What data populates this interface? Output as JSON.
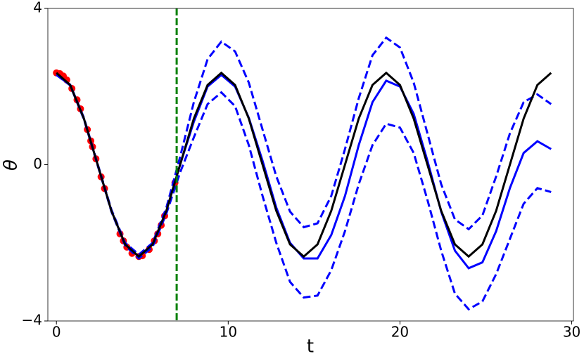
{
  "chart_data": {
    "type": "line",
    "xlabel": "t",
    "ylabel": "θ",
    "xlim": [
      -0.5,
      30.1
    ],
    "ylim": [
      -4,
      4
    ],
    "xticks": [
      0,
      10,
      20,
      30
    ],
    "yticks": [
      {
        "value": -4,
        "label": "−4"
      },
      0,
      4
    ],
    "x": [
      0,
      0.8,
      1.6,
      2.4,
      3.2,
      4.0,
      4.8,
      5.6,
      6.4,
      7.2,
      8.0,
      8.8,
      9.6,
      10.4,
      11.2,
      12.0,
      12.8,
      13.6,
      14.4,
      15.2,
      16.0,
      16.8,
      17.6,
      18.4,
      19.2,
      20.0,
      20.8,
      21.6,
      22.4,
      23.2,
      24.0,
      24.8,
      25.6,
      26.4,
      27.2,
      28.0,
      28.8
    ],
    "series": [
      {
        "color": "#0000ff",
        "dashed": true,
        "values": [
          2.3,
          2.05,
          1.2,
          0.02,
          -1.15,
          -2.0,
          -2.3,
          -2.0,
          -1.1,
          0.2,
          1.6,
          2.7,
          3.15,
          2.9,
          2.1,
          0.9,
          -0.3,
          -1.2,
          -1.6,
          -1.5,
          -0.8,
          0.4,
          1.7,
          2.8,
          3.25,
          3.0,
          2.1,
          0.8,
          -0.5,
          -1.4,
          -1.65,
          -1.3,
          -0.3,
          0.8,
          1.6,
          1.8,
          1.55
        ]
      },
      {
        "color": "#0000ff",
        "dashed": true,
        "values": [
          2.3,
          2.03,
          1.16,
          -0.02,
          -1.2,
          -2.07,
          -2.4,
          -2.1,
          -1.25,
          -0.2,
          0.7,
          1.55,
          1.85,
          1.5,
          0.5,
          -0.8,
          -2.0,
          -3.0,
          -3.4,
          -3.35,
          -2.7,
          -1.7,
          -0.5,
          0.5,
          1.05,
          0.95,
          0.3,
          -0.9,
          -2.2,
          -3.3,
          -3.7,
          -3.5,
          -2.8,
          -1.9,
          -1.0,
          -0.6,
          -0.7
        ]
      },
      {
        "color": "#0000ff",
        "dashed": false,
        "values": [
          2.3,
          2.04,
          1.18,
          0,
          -1.18,
          -2.04,
          -2.35,
          -2.04,
          -1.18,
          0,
          1.1,
          2.0,
          2.3,
          2.0,
          1.2,
          0.1,
          -1.1,
          -2.0,
          -2.4,
          -2.4,
          -1.8,
          -0.8,
          0.5,
          1.6,
          2.15,
          2.0,
          1.3,
          0.1,
          -1.2,
          -2.2,
          -2.65,
          -2.5,
          -1.7,
          -0.6,
          0.3,
          0.6,
          0.4
        ]
      },
      {
        "color": "#000000",
        "dashed": false,
        "values": [
          2.35,
          2.04,
          1.18,
          0,
          -1.18,
          -2.04,
          -2.35,
          -2.04,
          -1.18,
          0,
          1.18,
          2.04,
          2.35,
          2.04,
          1.18,
          0,
          -1.18,
          -2.04,
          -2.35,
          -2.04,
          -1.18,
          0,
          1.18,
          2.04,
          2.35,
          2.04,
          1.18,
          0,
          -1.18,
          -2.04,
          -2.35,
          -2.04,
          -1.18,
          0,
          1.18,
          2.04,
          2.35
        ]
      }
    ],
    "points": {
      "color": "#ff0000",
      "x": [
        0,
        0.2,
        0.4,
        0.6,
        0.9,
        1.2,
        1.4,
        1.8,
        2.0,
        2.1,
        2.3,
        2.6,
        2.8,
        3.7,
        3.9,
        4.1,
        4.4,
        4.8,
        5.0,
        5.4,
        5.7,
        5.9,
        6.1,
        6.3,
        6.9
      ],
      "y": [
        2.35,
        2.33,
        2.27,
        2.17,
        1.95,
        1.66,
        1.43,
        0.9,
        0.61,
        0.46,
        0.15,
        -0.31,
        -0.61,
        -1.77,
        -1.95,
        -2.11,
        -2.27,
        -2.35,
        -2.33,
        -2.17,
        -1.95,
        -1.77,
        -1.55,
        -1.31,
        -0.46
      ]
    },
    "vline": {
      "x": 7,
      "color": "#008000"
    }
  }
}
